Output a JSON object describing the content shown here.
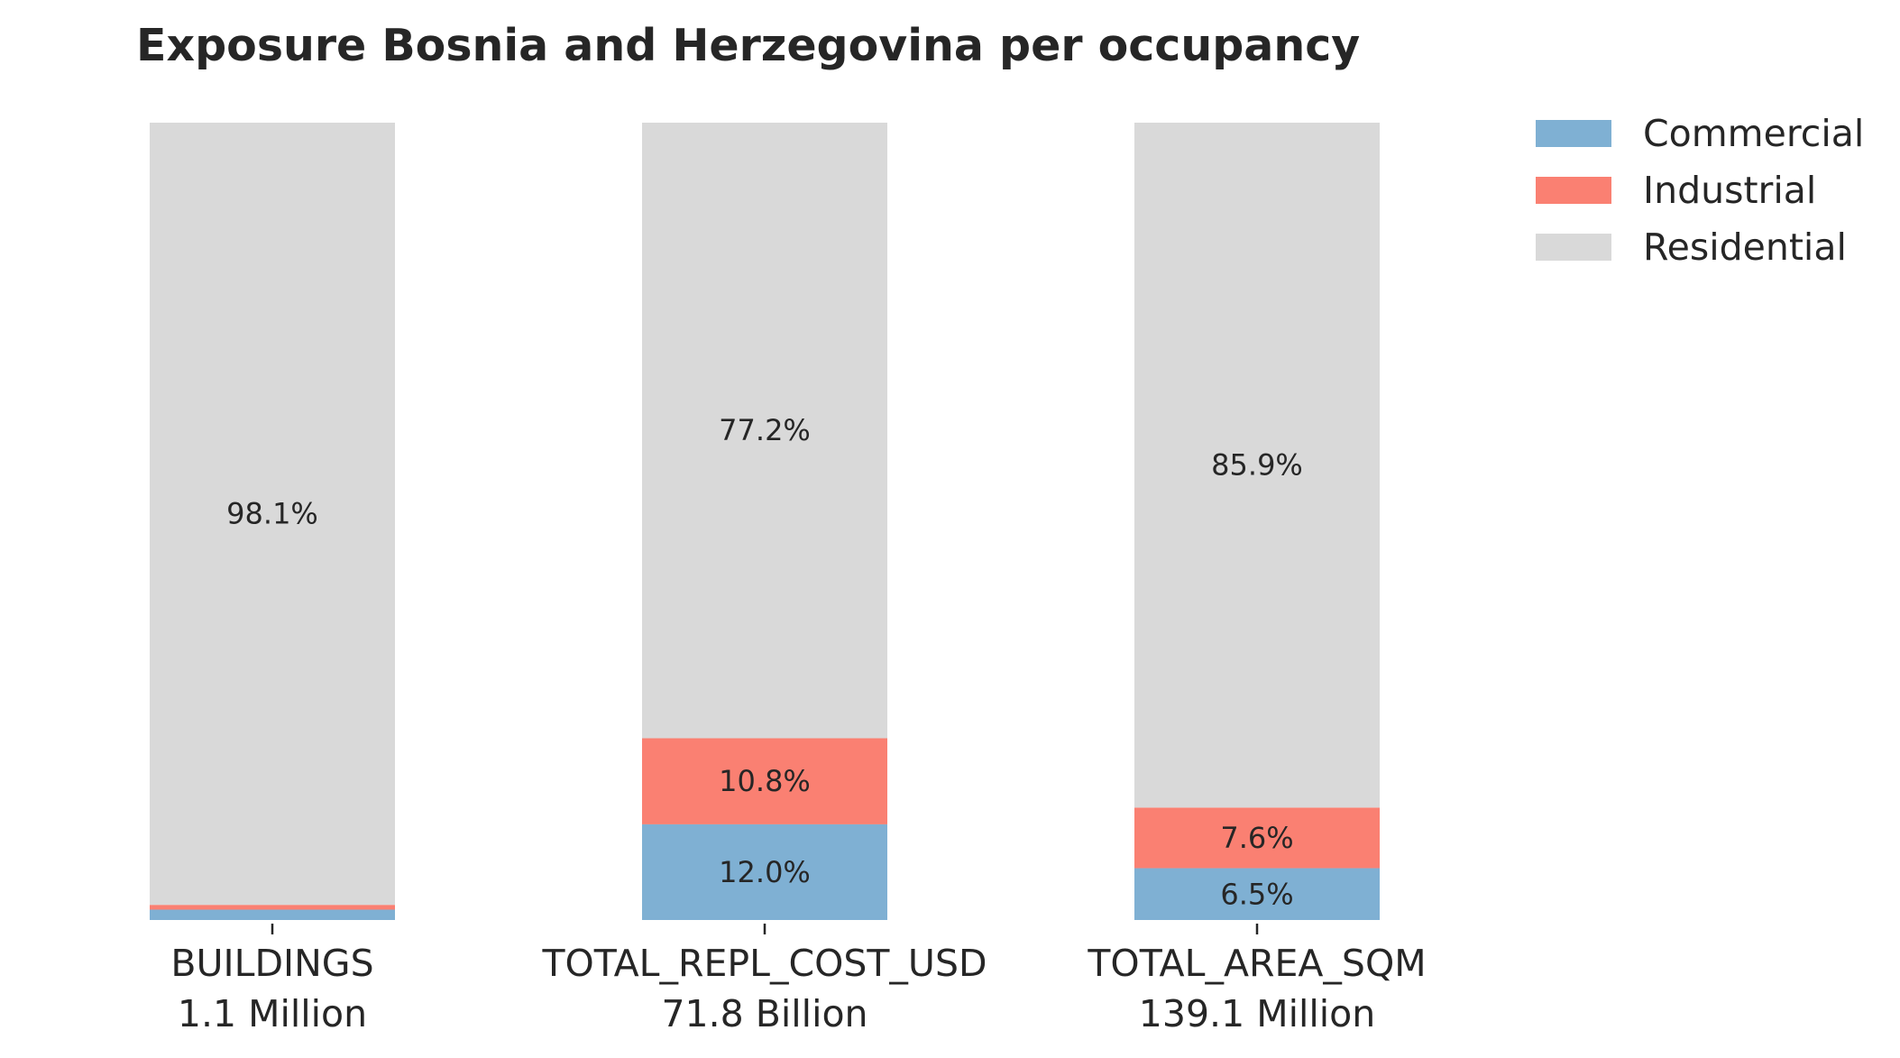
{
  "chart_data": {
    "type": "bar",
    "stacked": true,
    "normalized": true,
    "title": "Exposure Bosnia and Herzegovina per occupancy",
    "xlabel": "",
    "ylabel": "",
    "ylim": [
      0,
      100
    ],
    "grid": false,
    "legend_placement": "upper right, outside plot",
    "categories": [
      "BUILDINGS",
      "TOTAL_REPL_COST_USD",
      "TOTAL_AREA_SQM"
    ],
    "category_totals": [
      "1.1 Million",
      "71.8 Billion",
      "139.1 Million"
    ],
    "series": [
      {
        "name": "Commercial",
        "color": "#7fb0d3",
        "values": [
          1.3,
          12.0,
          6.5
        ],
        "labels": [
          "",
          "12.0%",
          "6.5%"
        ]
      },
      {
        "name": "Industrial",
        "color": "#fa8072",
        "values": [
          0.6,
          10.8,
          7.6
        ],
        "labels": [
          "",
          "10.8%",
          "7.6%"
        ]
      },
      {
        "name": "Residential",
        "color": "#d9d9d9",
        "values": [
          98.1,
          77.2,
          85.9
        ],
        "labels": [
          "98.1%",
          "77.2%",
          "85.9%"
        ]
      }
    ]
  }
}
